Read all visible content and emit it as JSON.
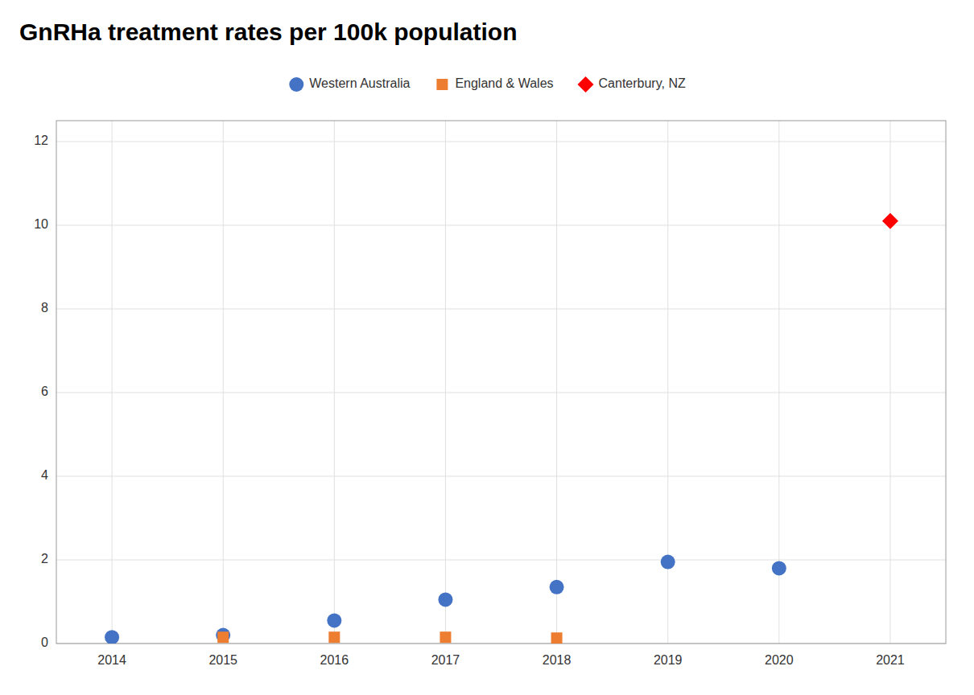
{
  "chart_data": {
    "type": "scatter",
    "title": "GnRHa treatment rates per 100k population",
    "series": [
      {
        "name": "Western Australia",
        "color": "#4472c4",
        "marker": "circle",
        "x": [
          2014,
          2015,
          2016,
          2017,
          2018,
          2019,
          2020
        ],
        "values": [
          0.15,
          0.2,
          0.55,
          1.05,
          1.35,
          1.95,
          1.8
        ]
      },
      {
        "name": "England & Wales",
        "color": "#ed7d31",
        "marker": "square",
        "x": [
          2015,
          2016,
          2017,
          2018
        ],
        "values": [
          0.15,
          0.15,
          0.15,
          0.13
        ]
      },
      {
        "name": "Canterbury, NZ",
        "color": "#ff0000",
        "marker": "diamond",
        "x": [
          2021
        ],
        "values": [
          10.1
        ]
      }
    ],
    "xlim": [
      2013.5,
      2021.5
    ],
    "ylim": [
      0,
      12.5
    ],
    "xticks": [
      2014,
      2015,
      2016,
      2017,
      2018,
      2019,
      2020,
      2021
    ],
    "yticks": [
      0,
      2,
      4,
      6,
      8,
      10,
      12
    ],
    "grid": true,
    "legend": "top"
  }
}
